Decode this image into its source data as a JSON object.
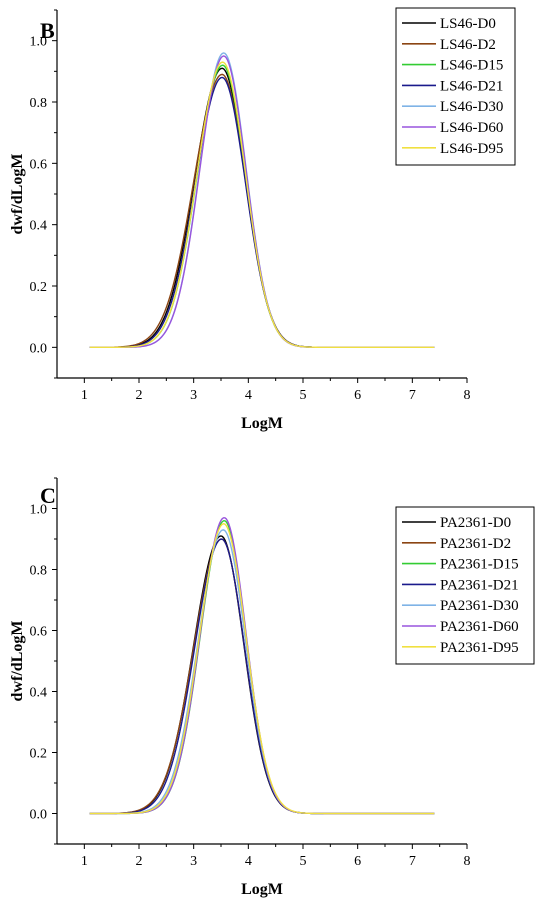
{
  "chart_data": [
    {
      "type": "line",
      "panel_label": "B",
      "xlabel": "LogM",
      "ylabel": "dwf/dLogM",
      "xlim": [
        0.5,
        8
      ],
      "ylim": [
        -0.1,
        1.1
      ],
      "xticks": [
        "1",
        "2",
        "3",
        "4",
        "5",
        "6",
        "7",
        "8"
      ],
      "yticks": [
        "0.0",
        "0.2",
        "0.4",
        "0.6",
        "0.8",
        "1.0"
      ],
      "legend_position": "top-right",
      "grid": false,
      "x_range": [
        1.1,
        7.4
      ],
      "series": [
        {
          "name": "LS46-D0",
          "color": "#000000",
          "peak_x": 3.52,
          "peak_y": 0.91,
          "sigma_left": 0.5,
          "sigma_right": 0.43
        },
        {
          "name": "LS46-D2",
          "color": "#8B4513",
          "peak_x": 3.52,
          "peak_y": 0.89,
          "sigma_left": 0.52,
          "sigma_right": 0.43
        },
        {
          "name": "LS46-D15",
          "color": "#33cc33",
          "peak_x": 3.53,
          "peak_y": 0.92,
          "sigma_left": 0.47,
          "sigma_right": 0.42
        },
        {
          "name": "LS46-D21",
          "color": "#1a1a8c",
          "peak_x": 3.52,
          "peak_y": 0.88,
          "sigma_left": 0.49,
          "sigma_right": 0.43
        },
        {
          "name": "LS46-D30",
          "color": "#7fb3e6",
          "peak_x": 3.55,
          "peak_y": 0.96,
          "sigma_left": 0.44,
          "sigma_right": 0.41
        },
        {
          "name": "LS46-D60",
          "color": "#9955dd",
          "peak_x": 3.55,
          "peak_y": 0.95,
          "sigma_left": 0.44,
          "sigma_right": 0.41
        },
        {
          "name": "LS46-D95",
          "color": "#f0e040",
          "peak_x": 3.53,
          "peak_y": 0.93,
          "sigma_left": 0.47,
          "sigma_right": 0.42
        }
      ]
    },
    {
      "type": "line",
      "panel_label": "C",
      "xlabel": "LogM",
      "ylabel": "dwf/dLogM",
      "xlim": [
        0.5,
        8
      ],
      "ylim": [
        -0.1,
        1.1
      ],
      "xticks": [
        "1",
        "2",
        "3",
        "4",
        "5",
        "6",
        "7",
        "8"
      ],
      "yticks": [
        "0.0",
        "0.2",
        "0.4",
        "0.6",
        "0.8",
        "1.0"
      ],
      "legend_position": "top-right",
      "grid": false,
      "x_range": [
        1.1,
        7.4
      ],
      "series": [
        {
          "name": "PA2361-D0",
          "color": "#000000",
          "peak_x": 3.5,
          "peak_y": 0.91,
          "sigma_left": 0.5,
          "sigma_right": 0.42
        },
        {
          "name": "PA2361-D2",
          "color": "#8B4513",
          "peak_x": 3.51,
          "peak_y": 0.9,
          "sigma_left": 0.51,
          "sigma_right": 0.42
        },
        {
          "name": "PA2361-D15",
          "color": "#33cc33",
          "peak_x": 3.56,
          "peak_y": 0.96,
          "sigma_left": 0.44,
          "sigma_right": 0.4
        },
        {
          "name": "PA2361-D21",
          "color": "#1a1a8c",
          "peak_x": 3.51,
          "peak_y": 0.9,
          "sigma_left": 0.49,
          "sigma_right": 0.42
        },
        {
          "name": "PA2361-D30",
          "color": "#7fb3e6",
          "peak_x": 3.54,
          "peak_y": 0.93,
          "sigma_left": 0.46,
          "sigma_right": 0.41
        },
        {
          "name": "PA2361-D60",
          "color": "#9955dd",
          "peak_x": 3.56,
          "peak_y": 0.97,
          "sigma_left": 0.44,
          "sigma_right": 0.4
        },
        {
          "name": "PA2361-D95",
          "color": "#f0e040",
          "peak_x": 3.55,
          "peak_y": 0.95,
          "sigma_left": 0.45,
          "sigma_right": 0.41
        }
      ]
    }
  ]
}
